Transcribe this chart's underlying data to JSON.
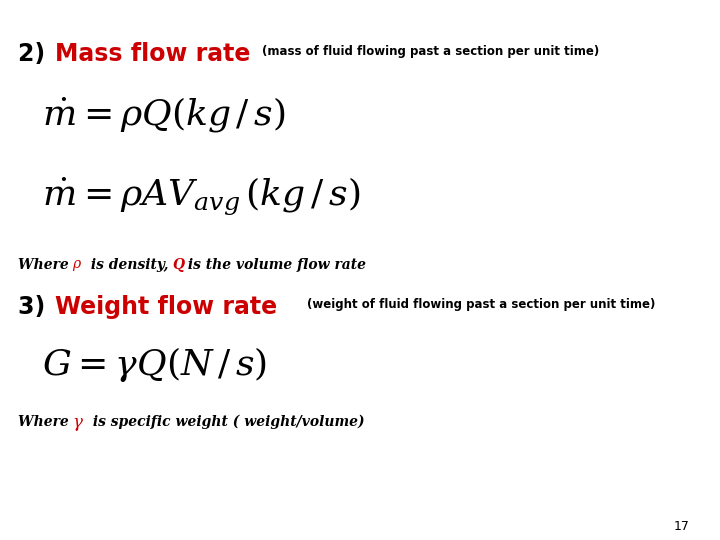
{
  "background_color": "#ffffff",
  "page_number": "17",
  "title_color": "#cc0000",
  "black": "#000000",
  "red": "#cc0000",
  "fig_w": 7.2,
  "fig_h": 5.4,
  "dpi": 100
}
